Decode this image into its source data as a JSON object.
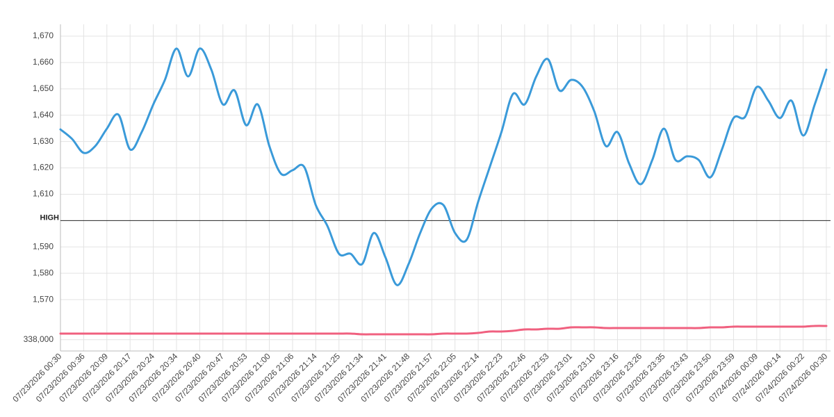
{
  "chart_data": {
    "type": "line",
    "categories": [
      "07/23/2026 00:30",
      null,
      "07/23/2026 00:36",
      null,
      "07/23/2026 20:09",
      null,
      "07/23/2026 20:17",
      null,
      "07/23/2026 20:24",
      null,
      "07/23/2026 20:34",
      null,
      "07/23/2026 20:40",
      null,
      "07/23/2026 20:47",
      null,
      "07/23/2026 20:53",
      null,
      "07/23/2026 21:00",
      null,
      "07/23/2026 21:06",
      null,
      "07/23/2026 21:14",
      null,
      "07/23/2026 21:25",
      null,
      "07/23/2026 21:34",
      null,
      "07/23/2026 21:41",
      null,
      "07/23/2026 21:48",
      null,
      "07/23/2026 21:57",
      null,
      "07/23/2026 22:05",
      null,
      "07/23/2026 22:14",
      null,
      "07/23/2026 22:23",
      null,
      "07/23/2026 22:46",
      null,
      "07/23/2026 22:53",
      null,
      "07/23/2026 23:01",
      null,
      "07/23/2026 23:10",
      null,
      "07/23/2026 23:16",
      null,
      "07/23/2026 23:26",
      null,
      "07/23/2026 23:35",
      null,
      "07/23/2026 23:43",
      null,
      "07/23/2026 23:50",
      null,
      "07/23/2026 23:59",
      null,
      "07/24/2026 00:09",
      null,
      "07/24/2026 00:14",
      null,
      "07/24/2026 00:22",
      null,
      "07/24/2026 00:30"
    ],
    "series": [
      {
        "color": "#3a9ad9",
        "values": [
          1634.6,
          1631.0,
          1625.7,
          1628.3,
          1634.9,
          1640.2,
          1627.0,
          1633.6,
          1644.1,
          1653.4,
          1665.3,
          1654.7,
          1665.3,
          1657.3,
          1644.1,
          1649.4,
          1636.2,
          1644.1,
          1628.3,
          1617.8,
          1619.1,
          1620.4,
          1605.9,
          1598.0,
          1587.4,
          1587.4,
          1583.5,
          1595.3,
          1586.1,
          1575.5,
          1583.5,
          1595.3,
          1604.6,
          1605.9,
          1595.3,
          1592.7,
          1607.2,
          1620.4,
          1633.6,
          1648.1,
          1644.1,
          1654.7,
          1661.3,
          1649.4,
          1653.4,
          1650.7,
          1641.5,
          1628.3,
          1633.6,
          1621.7,
          1613.8,
          1623.0,
          1634.9,
          1623.0,
          1624.4,
          1623.0,
          1616.4,
          1627.0,
          1638.9,
          1639.4,
          1650.7,
          1645.5,
          1638.9,
          1645.5,
          1632.3,
          1644.1,
          1657.3
        ]
      },
      {
        "color": "#f0607f",
        "axis": "y2",
        "values": [
          338543,
          338543,
          338543,
          338543,
          338543,
          338543,
          338543,
          338543,
          338543,
          338543,
          338543,
          338543,
          338543,
          338543,
          338543,
          338543,
          338543,
          338543,
          338543,
          338543,
          338543,
          338543,
          338543,
          338543,
          338543,
          338543,
          338481,
          338481,
          338481,
          338481,
          338481,
          338481,
          338481,
          338543,
          338543,
          338543,
          338605,
          338728,
          338728,
          338790,
          338913,
          338913,
          338974,
          338974,
          339098,
          339098,
          339098,
          339036,
          339036,
          339036,
          339036,
          339036,
          339036,
          339036,
          339036,
          339036,
          339098,
          339098,
          339160,
          339160,
          339160,
          339160,
          339160,
          339160,
          339160,
          339221,
          339221
        ]
      }
    ],
    "ylim": [
      1550.5,
      1674.5
    ],
    "yticks": [
      {
        "value": 1570,
        "label": "1,570"
      },
      {
        "value": 1580,
        "label": "1,580"
      },
      {
        "value": 1590,
        "label": "1,590"
      },
      {
        "value": 1610,
        "label": "1,610"
      },
      {
        "value": 1620,
        "label": "1,620"
      },
      {
        "value": 1630,
        "label": "1,630"
      },
      {
        "value": 1640,
        "label": "1,640"
      },
      {
        "value": 1650,
        "label": "1,650"
      },
      {
        "value": 1660,
        "label": "1,660"
      },
      {
        "value": 1670,
        "label": "1,670"
      }
    ],
    "y2lim": [
      337000,
      366000
    ],
    "y2ticks": [
      {
        "value": 338000,
        "label": "338,000"
      }
    ],
    "reference_lines": [
      {
        "value": 1600,
        "label": "HIGH",
        "color": "#222222"
      }
    ],
    "grid": true
  }
}
